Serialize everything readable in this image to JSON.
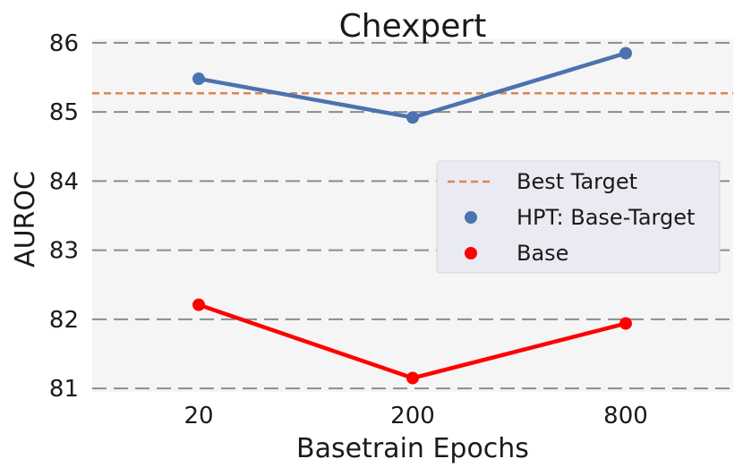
{
  "chart_data": {
    "type": "line",
    "title": "Chexpert",
    "xlabel": "Basetrain Epochs",
    "ylabel": "AUROC",
    "categories": [
      "20",
      "200",
      "800"
    ],
    "yticks": [
      81,
      82,
      83,
      84,
      85,
      86
    ],
    "ylim": [
      80.95,
      86.05
    ],
    "grid": true,
    "legend_position": "right",
    "reference_line": {
      "name": "Best Target",
      "value": 85.27,
      "color": "#dd8452"
    },
    "series": [
      {
        "name": "HPT: Base-Target",
        "values": [
          85.48,
          84.92,
          85.85
        ],
        "color": "#4c72b0"
      },
      {
        "name": "Base",
        "values": [
          82.21,
          81.15,
          81.94
        ],
        "color": "#ff0000"
      }
    ]
  },
  "colors": {
    "plot_background": "#f5f5f5",
    "gridline": "#8c8c8c",
    "legend_background": "#eaeaf2"
  }
}
